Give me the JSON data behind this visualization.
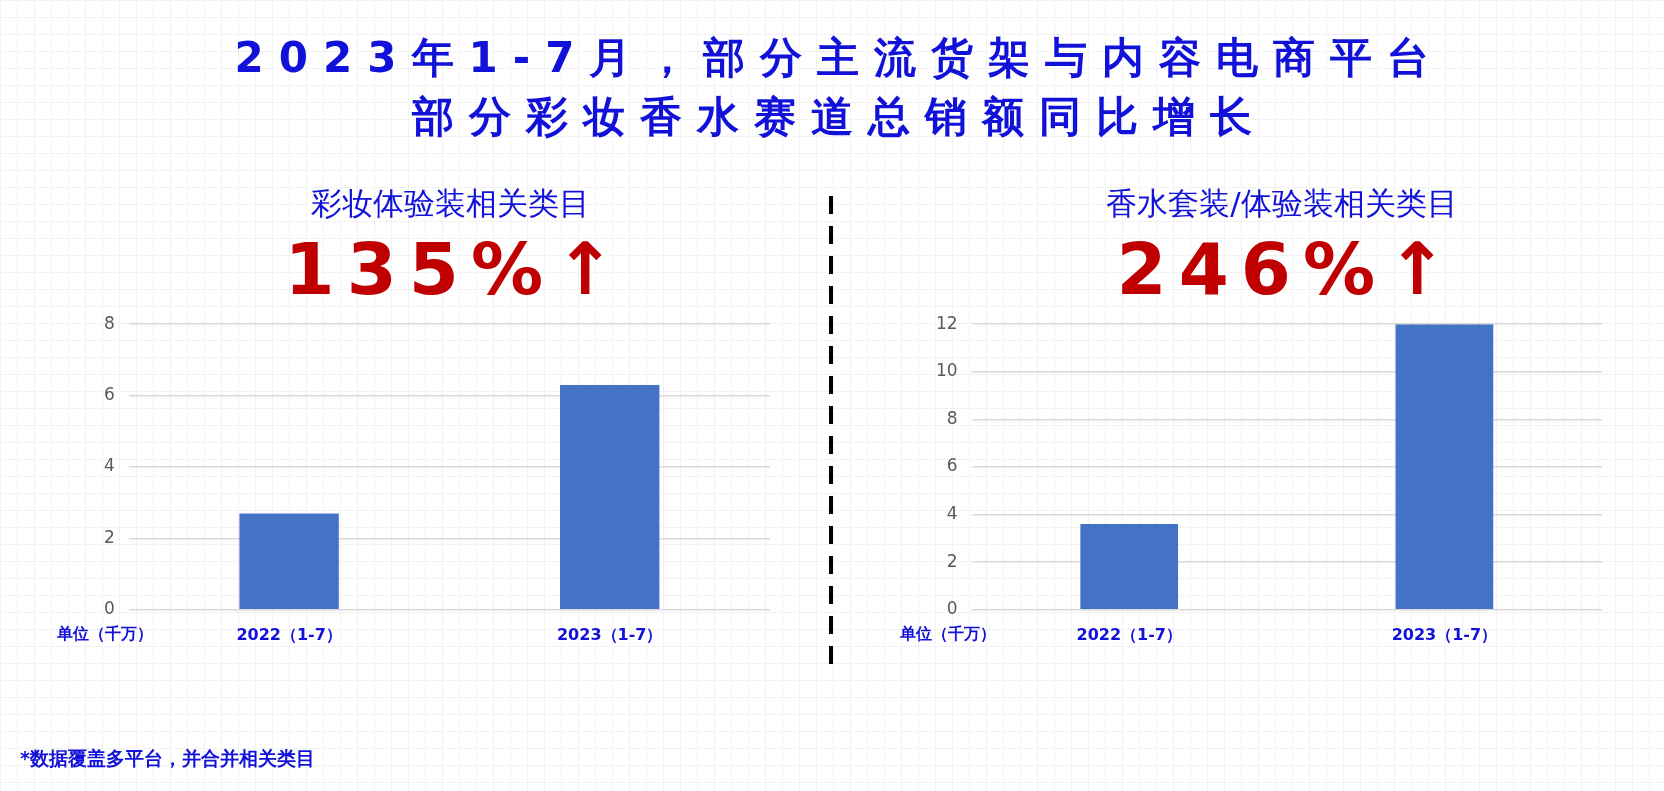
{
  "chart_data": [
    {
      "type": "other",
      "title": "2023年1-7月，部分主流货架与内容电商平台",
      "subtitle": "部分彩妆香水赛道总销额同比增长"
    },
    {
      "type": "bar",
      "title": "彩妆体验装相关类目",
      "subtitle": "135%↑",
      "ylabel": "单位（千万）",
      "categories": [
        "2022（1-7）",
        "2023（1-7）"
      ],
      "values": [
        2.7,
        6.3
      ],
      "color": "#4472c4",
      "ylim": [
        0,
        8
      ],
      "yticks": [
        0,
        2,
        4,
        6,
        8
      ],
      "grid": "y",
      "annotations": [
        "*数据覆盖多平台，并合并相关类目"
      ]
    },
    {
      "type": "bar",
      "title": "香水套装/体验装相关类目",
      "subtitle": "246%↑",
      "ylabel": "单位（千万）",
      "categories": [
        "2022（1-7）",
        "2023（1-7）"
      ],
      "values": [
        3.6,
        12.0
      ],
      "color": "#4472c4",
      "ylim": [
        0,
        12
      ],
      "yticks": [
        0,
        2,
        4,
        6,
        8,
        10,
        12
      ],
      "grid": "y"
    }
  ]
}
